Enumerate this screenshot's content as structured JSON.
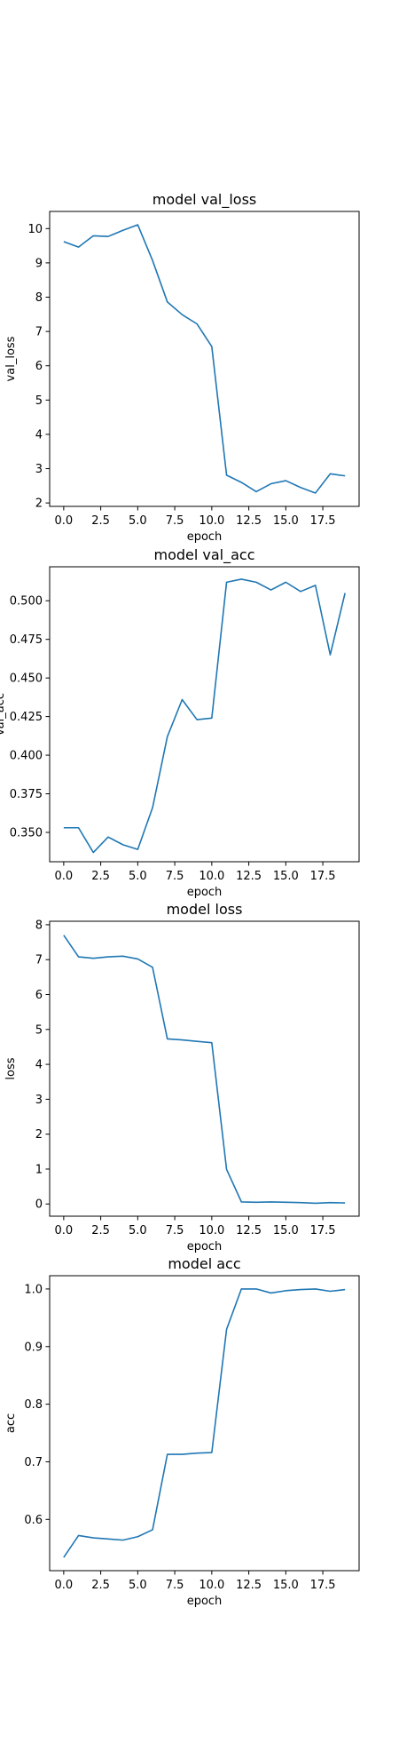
{
  "chart_data": [
    {
      "type": "line",
      "title": "model val_loss",
      "xlabel": "epoch",
      "ylabel": "val_loss",
      "xlim": [
        -0.95,
        19.95
      ],
      "ylim": [
        1.9,
        10.5
      ],
      "xticks": [
        0.0,
        2.5,
        5.0,
        7.5,
        10.0,
        12.5,
        15.0,
        17.5
      ],
      "xtick_labels": [
        "0.0",
        "2.5",
        "5.0",
        "7.5",
        "10.0",
        "12.5",
        "15.0",
        "17.5"
      ],
      "yticks": [
        2,
        3,
        4,
        5,
        6,
        7,
        8,
        9,
        10
      ],
      "ytick_labels": [
        "2",
        "3",
        "4",
        "5",
        "6",
        "7",
        "8",
        "9",
        "10"
      ],
      "grid": false,
      "color": "#1f77b4",
      "series": [
        {
          "x": [
            0,
            1,
            2,
            3,
            4,
            5,
            6,
            7,
            8,
            9,
            10,
            11,
            12,
            13,
            14,
            15,
            16,
            17,
            18,
            19
          ],
          "values": [
            9.62,
            9.46,
            9.79,
            9.77,
            9.95,
            10.11,
            9.07,
            7.86,
            7.49,
            7.22,
            6.56,
            2.81,
            2.6,
            2.33,
            2.56,
            2.65,
            2.45,
            2.29,
            2.85,
            2.79
          ]
        }
      ]
    },
    {
      "type": "line",
      "title": "model val_acc",
      "xlabel": "epoch",
      "ylabel": "val_acc",
      "xlim": [
        -0.95,
        19.95
      ],
      "ylim": [
        0.331,
        0.522
      ],
      "xticks": [
        0.0,
        2.5,
        5.0,
        7.5,
        10.0,
        12.5,
        15.0,
        17.5
      ],
      "xtick_labels": [
        "0.0",
        "2.5",
        "5.0",
        "7.5",
        "10.0",
        "12.5",
        "15.0",
        "17.5"
      ],
      "yticks": [
        0.35,
        0.375,
        0.4,
        0.425,
        0.45,
        0.475,
        0.5
      ],
      "ytick_labels": [
        "0.350",
        "0.375",
        "0.400",
        "0.425",
        "0.450",
        "0.475",
        "0.500"
      ],
      "grid": false,
      "color": "#1f77b4",
      "series": [
        {
          "x": [
            0,
            1,
            2,
            3,
            4,
            5,
            6,
            7,
            8,
            9,
            10,
            11,
            12,
            13,
            14,
            15,
            16,
            17,
            18,
            19
          ],
          "values": [
            0.353,
            0.353,
            0.337,
            0.347,
            0.342,
            0.339,
            0.366,
            0.412,
            0.436,
            0.423,
            0.424,
            0.512,
            0.514,
            0.512,
            0.507,
            0.512,
            0.506,
            0.51,
            0.465,
            0.505
          ]
        }
      ]
    },
    {
      "type": "line",
      "title": "model loss",
      "xlabel": "epoch",
      "ylabel": "loss",
      "xlim": [
        -0.95,
        19.95
      ],
      "ylim": [
        -0.35,
        8.1
      ],
      "xticks": [
        0.0,
        2.5,
        5.0,
        7.5,
        10.0,
        12.5,
        15.0,
        17.5
      ],
      "xtick_labels": [
        "0.0",
        "2.5",
        "5.0",
        "7.5",
        "10.0",
        "12.5",
        "15.0",
        "17.5"
      ],
      "yticks": [
        0,
        1,
        2,
        3,
        4,
        5,
        6,
        7,
        8
      ],
      "ytick_labels": [
        "0",
        "1",
        "2",
        "3",
        "4",
        "5",
        "6",
        "7",
        "8"
      ],
      "grid": false,
      "color": "#1f77b4",
      "series": [
        {
          "x": [
            0,
            1,
            2,
            3,
            4,
            5,
            6,
            7,
            8,
            9,
            10,
            11,
            12,
            13,
            14,
            15,
            16,
            17,
            18,
            19
          ],
          "values": [
            7.7,
            7.08,
            7.04,
            7.08,
            7.1,
            7.02,
            6.78,
            4.73,
            4.7,
            4.66,
            4.62,
            0.99,
            0.06,
            0.05,
            0.06,
            0.05,
            0.04,
            0.02,
            0.04,
            0.03
          ]
        }
      ]
    },
    {
      "type": "line",
      "title": "model acc",
      "xlabel": "epoch",
      "ylabel": "acc",
      "xlim": [
        -0.95,
        19.95
      ],
      "ylim": [
        0.511,
        1.023
      ],
      "xticks": [
        0.0,
        2.5,
        5.0,
        7.5,
        10.0,
        12.5,
        15.0,
        17.5
      ],
      "xtick_labels": [
        "0.0",
        "2.5",
        "5.0",
        "7.5",
        "10.0",
        "12.5",
        "15.0",
        "17.5"
      ],
      "yticks": [
        0.6,
        0.7,
        0.8,
        0.9,
        1.0
      ],
      "ytick_labels": [
        "0.6",
        "0.7",
        "0.8",
        "0.9",
        "1.0"
      ],
      "grid": false,
      "color": "#1f77b4",
      "series": [
        {
          "x": [
            0,
            1,
            2,
            3,
            4,
            5,
            6,
            7,
            8,
            9,
            10,
            11,
            12,
            13,
            14,
            15,
            16,
            17,
            18,
            19
          ],
          "values": [
            0.534,
            0.572,
            0.568,
            0.566,
            0.564,
            0.57,
            0.582,
            0.713,
            0.713,
            0.715,
            0.716,
            0.93,
            1.0,
            1.0,
            0.993,
            0.997,
            0.999,
            1.0,
            0.996,
            0.999
          ]
        }
      ]
    }
  ]
}
